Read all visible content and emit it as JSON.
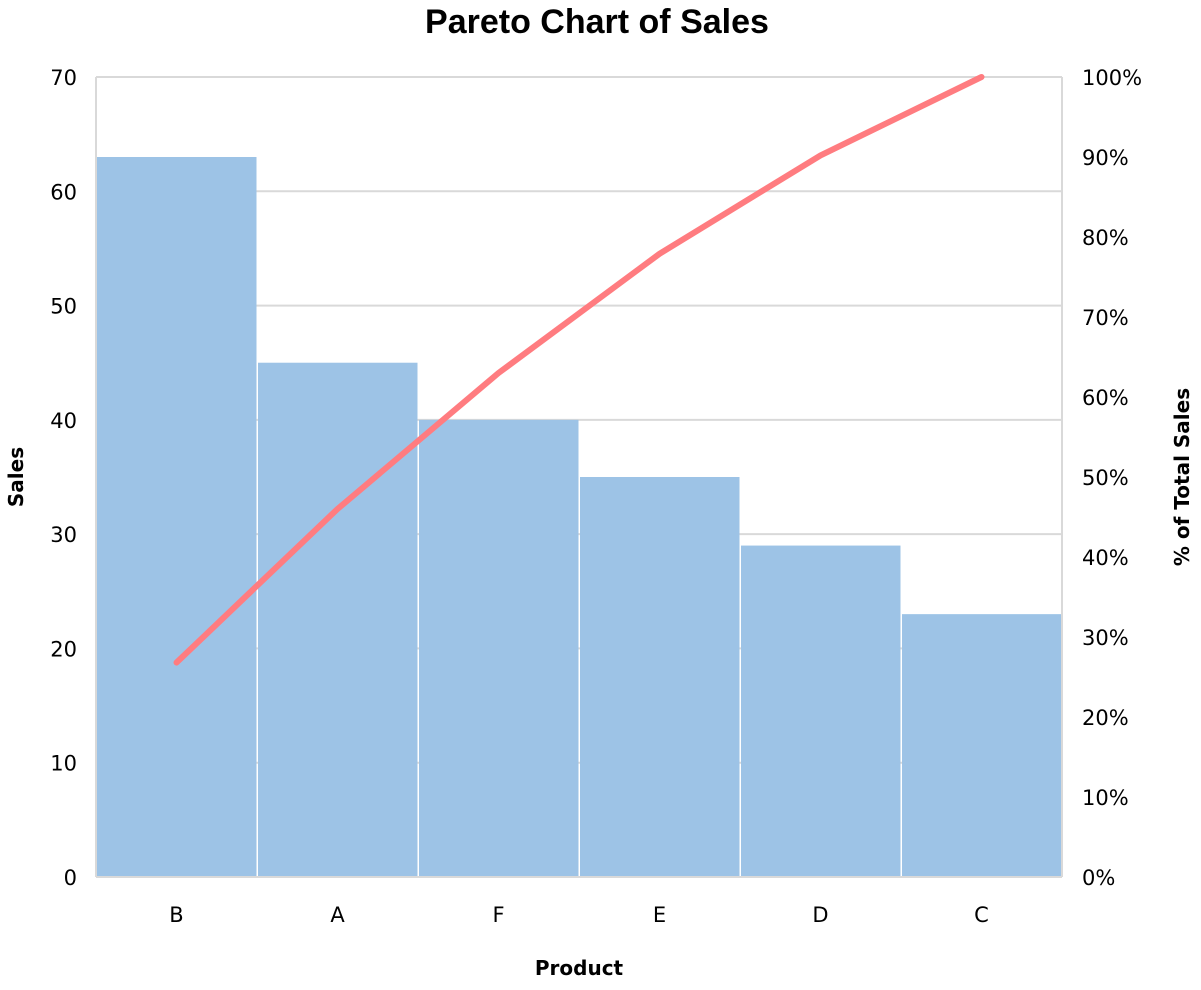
{
  "chart_data": {
    "type": "bar",
    "subtype": "pareto",
    "title": "Pareto Chart of Sales",
    "xlabel": "Product",
    "ylabel": "Sales",
    "y2label": "% of Total Sales",
    "categories": [
      "B",
      "A",
      "F",
      "E",
      "D",
      "C"
    ],
    "series": [
      {
        "name": "Sales",
        "kind": "bar",
        "axis": "left",
        "color": "#9DC3E6",
        "values": [
          63,
          45,
          40,
          35,
          29,
          23
        ]
      },
      {
        "name": "Cumulative %",
        "kind": "line",
        "axis": "right",
        "color": "#FF7C80",
        "values": [
          26.8,
          46.0,
          63.0,
          77.9,
          90.2,
          100.0
        ]
      }
    ],
    "ylim": [
      0,
      70
    ],
    "y2lim": [
      0,
      100
    ],
    "yticks": [
      0,
      10,
      20,
      30,
      40,
      50,
      60,
      70
    ],
    "y2ticks": [
      "0%",
      "10%",
      "20%",
      "30%",
      "40%",
      "50%",
      "60%",
      "70%",
      "80%",
      "90%",
      "100%"
    ],
    "grid": true,
    "legend": "none"
  },
  "colors": {
    "bar": "#9DC3E6",
    "line": "#FF7C80",
    "grid": "#D9D9D9",
    "text": "#000000"
  }
}
